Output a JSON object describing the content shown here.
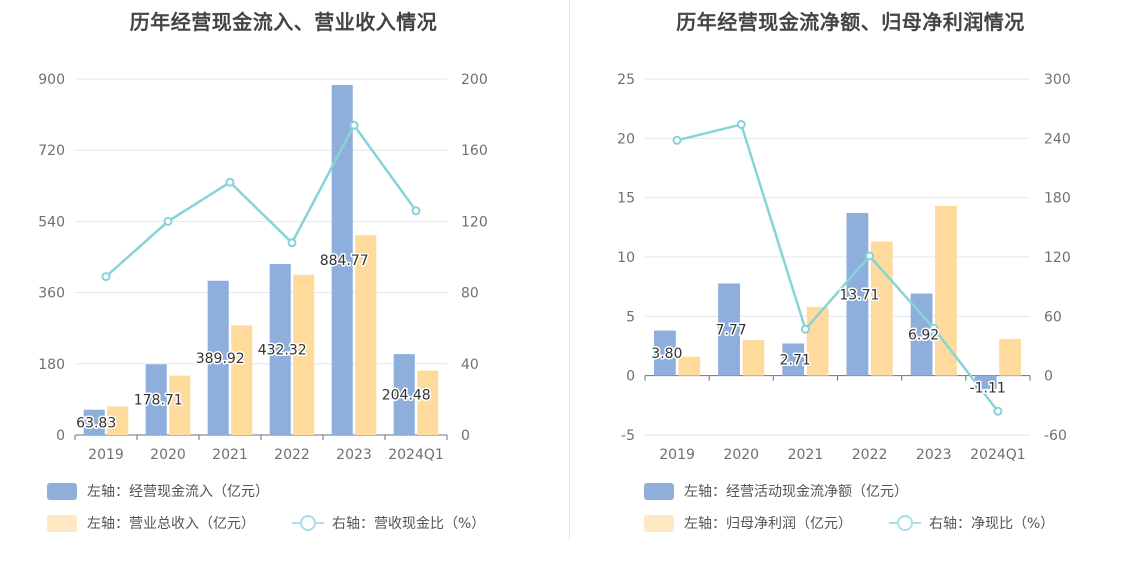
{
  "charts": [
    {
      "title": "历年经营现金流入、营业收入情况",
      "legend": {
        "bar1": "左轴：经营现金流入（亿元）",
        "bar2": "左轴：营业总收入（亿元）",
        "line": "右轴：营收现金比（%）"
      }
    },
    {
      "title": "历年经营现金流净额、归母净利润情况",
      "legend": {
        "bar1": "左轴：经营活动现金流净额（亿元）",
        "bar2": "左轴：归母净利润（亿元）",
        "line": "右轴：净现比（%）"
      }
    }
  ],
  "colors": {
    "bar1": "#8eaedc",
    "bar2": "#fedb9d",
    "line": "#86d4d8",
    "grid": "#e0e6f1",
    "axis": "#6e7079"
  },
  "chart_data": [
    {
      "type": "bar",
      "title": "历年经营现金流入、营业收入情况",
      "categories": [
        "2019",
        "2020",
        "2021",
        "2022",
        "2023",
        "2024Q1"
      ],
      "left_axis": {
        "min": 0,
        "max": 900,
        "ticks": [
          "0",
          "180",
          "360",
          "540",
          "720",
          "900"
        ]
      },
      "right_axis": {
        "min": 0,
        "max": 200,
        "ticks": [
          "0",
          "40",
          "80",
          "120",
          "160",
          "200"
        ]
      },
      "series": [
        {
          "name": "经营现金流入（亿元）",
          "kind": "bar",
          "axis": "left",
          "values": [
            63.83,
            178.71,
            389.92,
            432.32,
            884.77,
            204.48
          ],
          "labels": [
            "63.83",
            "178.71",
            "389.92",
            "432.32",
            "884.77",
            "204.48"
          ]
        },
        {
          "name": "营业总收入（亿元）",
          "kind": "bar",
          "axis": "left",
          "values": [
            72,
            150,
            277,
            405,
            505,
            163
          ]
        },
        {
          "name": "营收现金比（%）",
          "kind": "line",
          "axis": "right",
          "values": [
            89,
            120,
            142,
            108,
            174,
            126
          ]
        }
      ]
    },
    {
      "type": "bar",
      "title": "历年经营现金流净额、归母净利润情况",
      "categories": [
        "2019",
        "2020",
        "2021",
        "2022",
        "2023",
        "2024Q1"
      ],
      "left_axis": {
        "min": -5,
        "max": 25,
        "ticks": [
          "-5",
          "0",
          "5",
          "10",
          "15",
          "20",
          "25"
        ]
      },
      "right_axis": {
        "min": -60,
        "max": 300,
        "ticks": [
          "-60",
          "0",
          "60",
          "120",
          "180",
          "240",
          "300"
        ]
      },
      "series": [
        {
          "name": "经营活动现金流净额（亿元）",
          "kind": "bar",
          "axis": "left",
          "values": [
            3.8,
            7.77,
            2.71,
            13.71,
            6.92,
            -1.11
          ],
          "labels": [
            "3.80",
            "7.77",
            "2.71",
            "13.71",
            "6.92",
            "-1.11"
          ]
        },
        {
          "name": "归母净利润（亿元）",
          "kind": "bar",
          "axis": "left",
          "values": [
            1.6,
            3.0,
            5.8,
            11.3,
            14.3,
            3.1
          ]
        },
        {
          "name": "净现比（%）",
          "kind": "line",
          "axis": "right",
          "values": [
            238,
            254,
            47,
            121,
            48,
            -36
          ]
        }
      ]
    }
  ]
}
